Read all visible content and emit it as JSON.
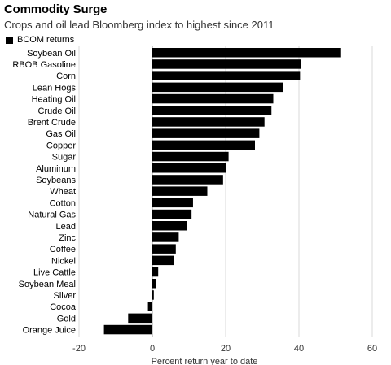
{
  "title": "Commodity Surge",
  "subtitle": "Crops and oil lead Bloomberg index to highest since 2011",
  "chart_data": {
    "type": "bar",
    "orientation": "horizontal",
    "title": "Commodity Surge",
    "subtitle": "Crops and oil lead Bloomberg index to highest since 2011",
    "legend": [
      "BCOM returns"
    ],
    "legend_position": "top-left",
    "xlabel": "Percent return year to date",
    "ylabel": "",
    "xlim": [
      -20,
      60
    ],
    "xticks": [
      -20,
      0,
      20,
      40,
      60
    ],
    "xtick_labels": [
      "-20",
      "0",
      "20",
      "40",
      "60"
    ],
    "grid": false,
    "bar_color": "#000000",
    "categories": [
      "Soybean Oil",
      "RBOB Gasoline",
      "Corn",
      "Lean Hogs",
      "Heating Oil",
      "Crude Oil",
      "Brent Crude",
      "Gas Oil",
      "Copper",
      "Sugar",
      "Aluminum",
      "Soybeans",
      "Wheat",
      "Cotton",
      "Natural Gas",
      "Lead",
      "Zinc",
      "Coffee",
      "Nickel",
      "Live Cattle",
      "Soybean Meal",
      "Silver",
      "Cocoa",
      "Gold",
      "Orange Juice"
    ],
    "series": [
      {
        "name": "BCOM returns",
        "values": [
          51.5,
          40.5,
          40.3,
          35.6,
          33.0,
          32.5,
          30.6,
          29.2,
          28.0,
          20.8,
          20.2,
          19.3,
          15.0,
          11.1,
          10.7,
          9.5,
          7.2,
          6.4,
          5.8,
          1.6,
          1.0,
          0.4,
          -1.2,
          -6.6,
          -13.2
        ]
      }
    ]
  }
}
